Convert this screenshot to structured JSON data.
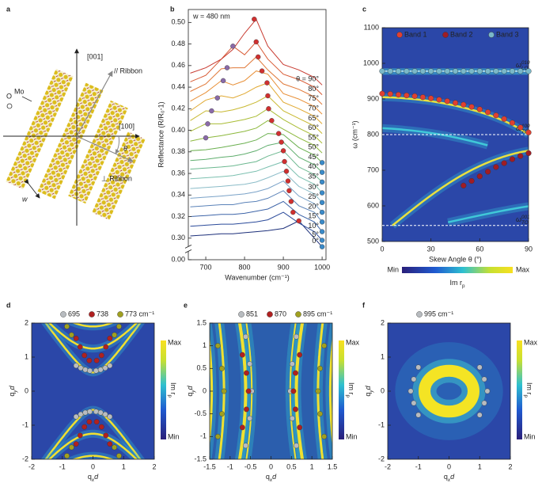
{
  "diagram": {
    "panel": "a",
    "axis_up": "[001]",
    "axis_right": "[100]",
    "atom_mo": "Mo",
    "atom_o": "O",
    "parallel": "// Ribbon",
    "perp": "⊥ Ribbon",
    "angle": "θ",
    "width": "w"
  },
  "chart_data": [
    {
      "panel": "b",
      "type": "line",
      "annotation": "w = 480 nm",
      "x_label": "Wavenumber (cm⁻¹)",
      "y_label": "Reflectance (R/R₀-1)",
      "xlim": [
        655,
        1010
      ],
      "xticks": [
        700,
        800,
        900,
        1000
      ],
      "ylim": [
        0,
        0.512
      ],
      "y_break": [
        0.01,
        0.29
      ],
      "yticks": [
        {
          "value": 0,
          "label": "0.00"
        },
        {
          "value": 0.3,
          "label": "0.30"
        },
        {
          "value": 0.32,
          "label": "0.32"
        },
        {
          "value": 0.34,
          "label": "0.34"
        },
        {
          "value": 0.36,
          "label": "0.36"
        },
        {
          "value": 0.38,
          "label": "0.38"
        },
        {
          "value": 0.4,
          "label": "0.40"
        },
        {
          "value": 0.42,
          "label": "0.42"
        },
        {
          "value": 0.44,
          "label": "0.44"
        },
        {
          "value": 0.46,
          "label": "0.46"
        },
        {
          "value": 0.48,
          "label": "0.48"
        },
        {
          "value": 0.5,
          "label": "0.50"
        }
      ],
      "x": [
        660,
        700,
        740,
        770,
        800,
        830,
        860,
        900,
        940,
        980,
        1000
      ],
      "series": [
        {
          "name": "0°",
          "color": "#1c2f7a",
          "values": [
            0.302,
            0.303,
            0.304,
            0.304,
            0.305,
            0.306,
            0.307,
            0.309,
            0.316,
            0.3,
            0.292
          ]
        },
        {
          "name": "5°",
          "color": "#2a4a9a",
          "values": [
            0.311,
            0.312,
            0.313,
            0.313,
            0.314,
            0.315,
            0.317,
            0.324,
            0.314,
            0.306,
            0.298
          ]
        },
        {
          "name": "10°",
          "color": "#3d64a8",
          "values": [
            0.32,
            0.321,
            0.322,
            0.322,
            0.323,
            0.325,
            0.327,
            0.334,
            0.322,
            0.315,
            0.306
          ]
        },
        {
          "name": "15°",
          "color": "#5a82b8",
          "values": [
            0.329,
            0.33,
            0.331,
            0.331,
            0.333,
            0.334,
            0.337,
            0.344,
            0.33,
            0.324,
            0.315
          ]
        },
        {
          "name": "20°",
          "color": "#7aa2c8",
          "values": [
            0.337,
            0.338,
            0.339,
            0.34,
            0.341,
            0.343,
            0.346,
            0.353,
            0.339,
            0.332,
            0.324
          ]
        },
        {
          "name": "25°",
          "color": "#8bbcc8",
          "values": [
            0.346,
            0.347,
            0.348,
            0.349,
            0.35,
            0.352,
            0.356,
            0.362,
            0.348,
            0.341,
            0.333
          ]
        },
        {
          "name": "30°",
          "color": "#7cc0b0",
          "values": [
            0.355,
            0.356,
            0.357,
            0.358,
            0.36,
            0.362,
            0.366,
            0.371,
            0.357,
            0.35,
            0.342
          ]
        },
        {
          "name": "35°",
          "color": "#6cb890",
          "values": [
            0.364,
            0.365,
            0.366,
            0.367,
            0.369,
            0.371,
            0.376,
            0.381,
            0.366,
            0.359,
            0.352
          ]
        },
        {
          "name": "40°",
          "color": "#5fae6e",
          "values": [
            0.372,
            0.373,
            0.375,
            0.376,
            0.378,
            0.381,
            0.386,
            0.389,
            0.375,
            0.368,
            0.361
          ]
        },
        {
          "name": "45°",
          "color": "#6bb050",
          "values": [
            0.381,
            0.382,
            0.384,
            0.386,
            0.388,
            0.391,
            0.397,
            0.396,
            0.384,
            0.377,
            0.37
          ]
        },
        {
          "name": "50°",
          "color": "#8cb83c",
          "values": [
            0.39,
            0.393,
            0.395,
            0.397,
            0.399,
            0.402,
            0.409,
            0.401,
            0.393,
            0.386,
            0.379
          ]
        },
        {
          "name": "55°",
          "color": "#a9bc34",
          "values": [
            0.399,
            0.406,
            0.406,
            0.408,
            0.41,
            0.413,
            0.42,
            0.41,
            0.402,
            0.395,
            0.388
          ]
        },
        {
          "name": "60°",
          "color": "#c8b830",
          "values": [
            0.409,
            0.418,
            0.417,
            0.419,
            0.422,
            0.426,
            0.432,
            0.418,
            0.411,
            0.404,
            0.397
          ]
        },
        {
          "name": "65°",
          "color": "#e0a830",
          "values": [
            0.418,
            0.428,
            0.432,
            0.43,
            0.434,
            0.44,
            0.444,
            0.426,
            0.42,
            0.413,
            0.406
          ]
        },
        {
          "name": "70°",
          "color": "#e89038",
          "values": [
            0.427,
            0.435,
            0.446,
            0.442,
            0.446,
            0.455,
            0.452,
            0.434,
            0.429,
            0.422,
            0.415
          ]
        },
        {
          "name": "75°",
          "color": "#e07838",
          "values": [
            0.436,
            0.443,
            0.457,
            0.458,
            0.458,
            0.468,
            0.456,
            0.443,
            0.438,
            0.431,
            0.424
          ]
        },
        {
          "name": "80°",
          "color": "#d85a34",
          "values": [
            0.445,
            0.451,
            0.466,
            0.478,
            0.47,
            0.482,
            0.466,
            0.452,
            0.447,
            0.44,
            0.433
          ]
        },
        {
          "name": "θ = 90°",
          "color": "#c83a30",
          "values": [
            0.453,
            0.458,
            0.466,
            0.475,
            0.49,
            0.503,
            0.478,
            0.461,
            0.456,
            0.449,
            0.442
          ]
        }
      ],
      "markers": [
        {
          "color": "#d03030",
          "x": [
            940,
            925,
            920,
            915,
            912,
            908,
            903,
            900,
            895,
            888,
            870,
            862,
            860,
            858,
            845,
            835,
            830,
            825
          ],
          "y": [
            0.316,
            0.324,
            0.334,
            0.344,
            0.353,
            0.362,
            0.371,
            0.381,
            0.389,
            0.397,
            0.409,
            0.42,
            0.432,
            0.444,
            0.455,
            0.468,
            0.482,
            0.503
          ]
        },
        {
          "color": "#8a6aa8",
          "x": [
            700,
            705,
            715,
            730,
            745,
            755,
            770
          ],
          "y": [
            0.393,
            0.406,
            0.418,
            0.43,
            0.446,
            0.458,
            0.478
          ]
        },
        {
          "color": "#3a8ac8",
          "x": [
            1000,
            1000,
            1000,
            1000,
            1000,
            1000,
            1000,
            1000,
            1000,
            1000
          ],
          "y": [
            0.292,
            0.298,
            0.306,
            0.315,
            0.324,
            0.333,
            0.342,
            0.352,
            0.361,
            0.37
          ]
        }
      ]
    },
    {
      "panel": "c",
      "type": "scatter",
      "heatmap": true,
      "x_label": "Skew Angle θ (°)",
      "y_label": "ω (cm⁻¹)",
      "xlim": [
        0,
        90
      ],
      "xticks": [
        0,
        30,
        60,
        90
      ],
      "ylim": [
        500,
        1100
      ],
      "yticks": [
        500,
        600,
        700,
        800,
        900,
        1000,
        1100
      ],
      "series": [
        {
          "name": "Band 1",
          "color": "#e04030",
          "x": [
            0,
            5,
            10,
            15,
            20,
            25,
            30,
            35,
            40,
            45,
            50,
            55,
            60,
            65,
            70,
            75,
            80,
            85,
            90
          ],
          "y": [
            915,
            914,
            912,
            910,
            908,
            905,
            902,
            898,
            894,
            889,
            884,
            878,
            871,
            863,
            854,
            844,
            833,
            820,
            806
          ]
        },
        {
          "name": "Band 2",
          "color": "#a01c24",
          "x": [
            50,
            55,
            60,
            65,
            70,
            75,
            80,
            85,
            90
          ],
          "y": [
            657,
            670,
            683,
            696,
            709,
            720,
            731,
            740,
            748
          ]
        },
        {
          "name": "Band 3",
          "color": "#7ab8c8",
          "x": [
            0,
            5,
            10,
            15,
            20,
            25,
            30,
            35,
            40,
            45,
            50,
            55,
            60,
            65,
            70,
            75,
            80,
            85,
            90
          ],
          "y": [
            978,
            978,
            978,
            978,
            978,
            978,
            978,
            978,
            978,
            978,
            978,
            978,
            978,
            978,
            978,
            978,
            978,
            978,
            978
          ]
        }
      ],
      "lines": [
        {
          "symbol": "ω",
          "sup": "010",
          "sub": "LO",
          "value": 978,
          "dashed": false
        },
        {
          "symbol": "ω",
          "sup": "100",
          "sub": "TO",
          "value": 800,
          "dashed": true
        },
        {
          "symbol": "ω",
          "sup": "001",
          "sub": "TO",
          "value": 545,
          "dashed": true
        }
      ],
      "colorbar": {
        "min": "Min",
        "max": "Max",
        "label": {
          "text": "Im r",
          "sub": "p"
        }
      }
    },
    {
      "panel": "d",
      "type": "scatter",
      "heatmap": true,
      "x_label": {
        "text": "q",
        "sub": "x",
        "after": "d"
      },
      "y_label": {
        "text": "q",
        "sub": "y",
        "after": "d"
      },
      "xlim": [
        -2,
        2
      ],
      "xticks": [
        -2,
        -1,
        0,
        1,
        2
      ],
      "ylim": [
        -2,
        2
      ],
      "yticks": [
        -2,
        -1,
        0,
        1,
        2
      ],
      "series": [
        {
          "name": "695",
          "color": "#b8bcc0",
          "x": [
            -0.55,
            -0.4,
            -0.25,
            -0.1,
            0.1,
            0.25,
            0.4,
            0.55,
            -0.55,
            -0.4,
            -0.25,
            -0.1,
            0.1,
            0.25,
            0.4,
            0.55
          ],
          "y": [
            0.75,
            0.68,
            0.63,
            0.6,
            0.6,
            0.63,
            0.68,
            0.75,
            -0.75,
            -0.68,
            -0.63,
            -0.6,
            -0.6,
            -0.63,
            -0.68,
            -0.75
          ]
        },
        {
          "name": "738",
          "color": "#b02020",
          "x": [
            -0.55,
            -0.42,
            -0.28,
            -0.12,
            0.12,
            0.28,
            0.42,
            0.55,
            -0.55,
            -0.42,
            -0.28,
            -0.12,
            0.12,
            0.28,
            0.42,
            0.55
          ],
          "y": [
            1.55,
            1.3,
            1.05,
            0.9,
            0.9,
            1.05,
            1.3,
            1.55,
            -1.55,
            -1.3,
            -1.05,
            -0.9,
            -0.9,
            -1.05,
            -1.3,
            -1.55
          ]
        },
        {
          "name": "773 cm⁻¹",
          "color": "#a0a020",
          "x": [
            -0.85,
            -0.7,
            0.7,
            0.85,
            -0.85,
            -0.7,
            0.7,
            0.85
          ],
          "y": [
            1.9,
            1.65,
            1.65,
            1.9,
            -1.9,
            -1.65,
            -1.65,
            -1.9
          ]
        }
      ],
      "colorbar": {
        "min": "Min",
        "max": "Max",
        "label": {
          "text": "Im r",
          "sub": "p"
        }
      }
    },
    {
      "panel": "e",
      "type": "scatter",
      "heatmap": true,
      "x_label": {
        "text": "q",
        "sub": "x",
        "after": "d"
      },
      "y_label": {
        "text": "q",
        "sub": "y",
        "after": "d"
      },
      "xlim": [
        -1.5,
        1.5
      ],
      "xticks": [
        -1.5,
        -1,
        -0.5,
        0,
        0.5,
        1,
        1.5
      ],
      "ylim": [
        -1.5,
        1.5
      ],
      "yticks": [
        -1.5,
        -1,
        -0.5,
        0,
        0.5,
        1,
        1.5
      ],
      "series": [
        {
          "name": "851",
          "color": "#b8bcc0",
          "x": [
            -0.62,
            -0.52,
            -0.47,
            -0.52,
            -0.62,
            0.62,
            0.52,
            0.47,
            0.52,
            0.62
          ],
          "y": [
            1.2,
            0.6,
            0,
            -0.6,
            -1.2,
            1.2,
            0.6,
            0,
            -0.6,
            -1.2
          ]
        },
        {
          "name": "870",
          "color": "#b02020",
          "x": [
            -0.7,
            -0.6,
            -0.55,
            -0.6,
            -0.7,
            0.7,
            0.6,
            0.55,
            0.6,
            0.7
          ],
          "y": [
            0.8,
            0.4,
            0,
            -0.4,
            -0.8,
            0.8,
            0.4,
            0,
            -0.4,
            -0.8
          ]
        },
        {
          "name": "895 cm⁻¹",
          "color": "#a0a020",
          "x": [
            -1.3,
            -1.2,
            -1.15,
            -1.2,
            -1.3,
            1.3,
            1.2,
            1.15,
            1.2,
            1.3
          ],
          "y": [
            1.0,
            0.5,
            0,
            -0.5,
            -1.0,
            1.0,
            0.5,
            0,
            -0.5,
            -1.0
          ]
        }
      ],
      "colorbar": {
        "min": "Min",
        "max": "Max",
        "label": {
          "text": "Im r",
          "sub": "p"
        }
      }
    },
    {
      "panel": "f",
      "type": "scatter",
      "heatmap": true,
      "x_label": {
        "text": "q",
        "sub": "x",
        "after": "d"
      },
      "y_label": {
        "text": "q",
        "sub": "y",
        "after": "d"
      },
      "xlim": [
        -2,
        2
      ],
      "xticks": [
        -2,
        -1,
        0,
        1,
        2
      ],
      "ylim": [
        -2,
        2
      ],
      "yticks": [
        -2,
        -1,
        0,
        1,
        2
      ],
      "series": [
        {
          "name": "995 cm⁻¹",
          "color": "#b8bcc0",
          "x": [
            -1.0,
            -1.15,
            -1.25,
            -1.15,
            -1.0,
            1.0,
            1.15,
            1.25,
            1.15,
            1.0
          ],
          "y": [
            0.7,
            0.35,
            0,
            -0.35,
            -0.7,
            0.7,
            0.35,
            0,
            -0.35,
            -0.7
          ]
        }
      ],
      "colorbar": {
        "min": "Min",
        "max": "Max",
        "label": {
          "text": "Im r",
          "sub": "p"
        }
      }
    }
  ]
}
